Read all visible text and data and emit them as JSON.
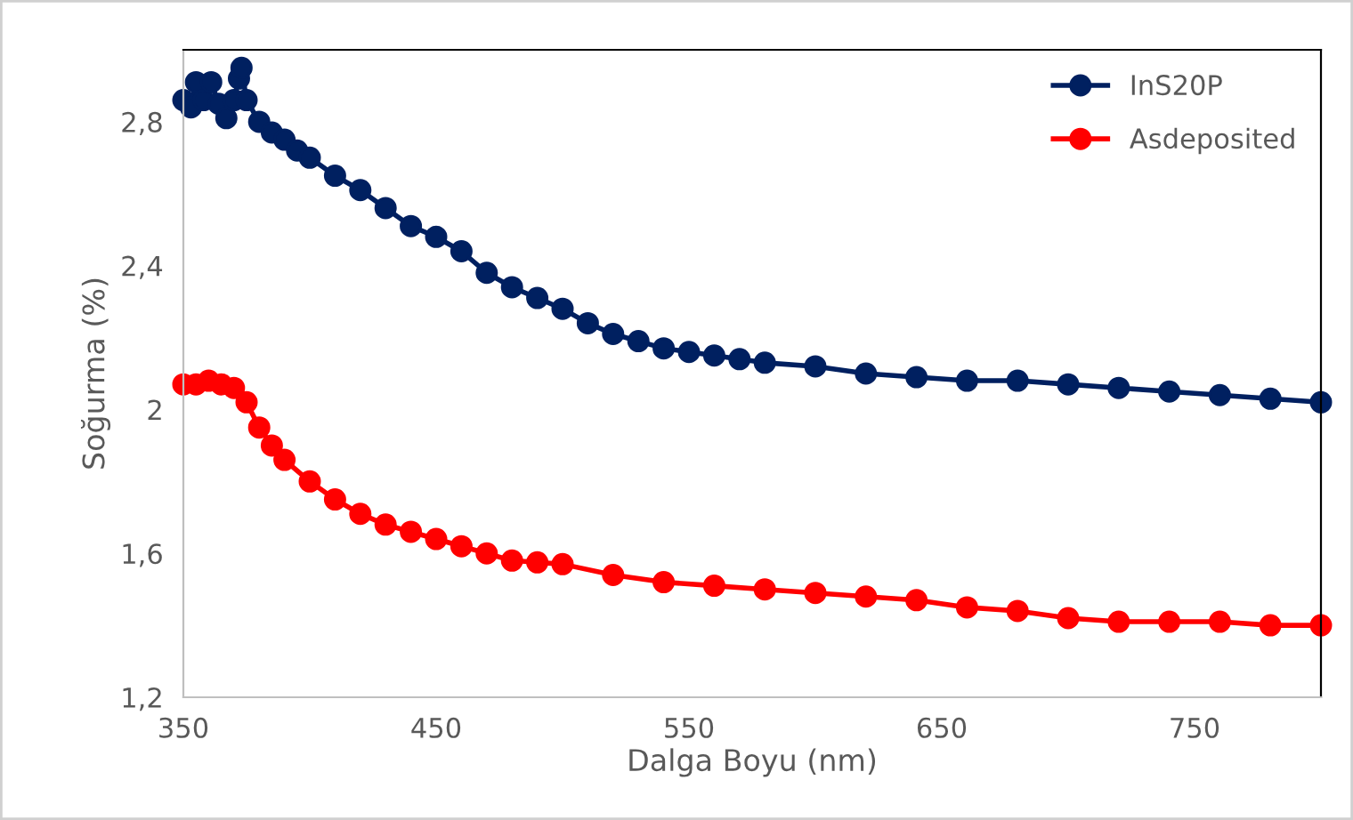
{
  "chart_data": {
    "type": "line",
    "xlabel": "Dalga Boyu (nm)",
    "ylabel": "Soğurma (%)",
    "xlim": [
      350,
      800
    ],
    "xticks": [
      350,
      450,
      550,
      650,
      750
    ],
    "ylim": [
      1.2,
      3.0
    ],
    "yticks": [
      {
        "value": 1.2,
        "label": "1,2"
      },
      {
        "value": 1.6,
        "label": "1,6"
      },
      2,
      {
        "value": 2.4,
        "label": "2,4"
      },
      {
        "value": 2.8,
        "label": "2,8"
      }
    ],
    "grid": false,
    "legend": "top right",
    "marker": "circle",
    "line_style": "solid",
    "series": [
      {
        "name": "InS20P",
        "color": "#002060",
        "x": [
          350,
          353,
          355,
          358,
          361,
          364,
          367,
          370,
          372,
          373,
          375,
          380,
          385,
          390,
          395,
          400,
          410,
          420,
          430,
          440,
          450,
          460,
          470,
          480,
          490,
          500,
          510,
          520,
          530,
          540,
          550,
          560,
          570,
          580,
          600,
          620,
          640,
          660,
          680,
          700,
          720,
          740,
          760,
          780,
          800
        ],
        "values": [
          2.86,
          2.84,
          2.91,
          2.86,
          2.91,
          2.85,
          2.81,
          2.86,
          2.92,
          2.95,
          2.86,
          2.8,
          2.77,
          2.75,
          2.72,
          2.7,
          2.65,
          2.61,
          2.56,
          2.51,
          2.48,
          2.44,
          2.38,
          2.34,
          2.31,
          2.28,
          2.24,
          2.21,
          2.19,
          2.17,
          2.16,
          2.15,
          2.14,
          2.13,
          2.12,
          2.1,
          2.09,
          2.08,
          2.08,
          2.07,
          2.06,
          2.05,
          2.04,
          2.03,
          2.02
        ]
      },
      {
        "name": "Asdeposited",
        "color": "#ff0000",
        "x": [
          350,
          355,
          360,
          365,
          370,
          375,
          380,
          385,
          390,
          400,
          410,
          420,
          430,
          440,
          450,
          460,
          470,
          480,
          490,
          500,
          520,
          540,
          560,
          580,
          600,
          620,
          640,
          660,
          680,
          700,
          720,
          740,
          760,
          780,
          800
        ],
        "values": [
          2.07,
          2.07,
          2.08,
          2.07,
          2.06,
          2.02,
          1.95,
          1.9,
          1.86,
          1.8,
          1.75,
          1.71,
          1.68,
          1.66,
          1.64,
          1.62,
          1.6,
          1.58,
          1.575,
          1.57,
          1.54,
          1.52,
          1.51,
          1.5,
          1.49,
          1.48,
          1.47,
          1.45,
          1.44,
          1.42,
          1.41,
          1.41,
          1.41,
          1.4,
          1.4
        ]
      }
    ]
  }
}
